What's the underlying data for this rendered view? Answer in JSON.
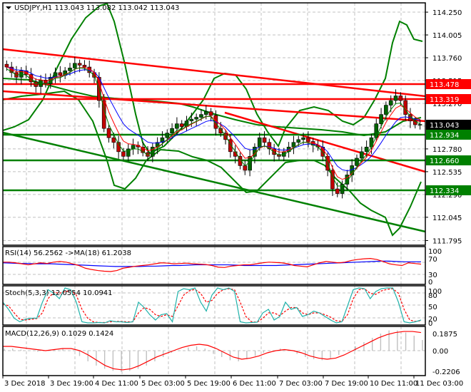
{
  "header": {
    "symbol": "USDJPY,H1",
    "ohlc": "113.043 113.082 113.042 113.043",
    "collapse_icon": "triangle-down-icon"
  },
  "price_axis": {
    "ticks": [
      "114.250",
      "114.005",
      "113.760",
      "113.515",
      "113.270",
      "113.043",
      "112.780",
      "112.535",
      "112.290",
      "112.045",
      "111.795"
    ],
    "current_price": "113.043",
    "levels": [
      {
        "value": "113.478",
        "color": "#ff0000"
      },
      {
        "value": "113.319",
        "color": "#ff0000"
      },
      {
        "value": "112.934",
        "color": "#008000"
      },
      {
        "value": "112.660",
        "color": "#008000"
      },
      {
        "value": "112.334",
        "color": "#008000"
      }
    ]
  },
  "rsi": {
    "label": "RSI(14) 56.2562  ->MA(18) 61.2038",
    "ticks": [
      "100",
      "70",
      "30",
      "0"
    ]
  },
  "stoch": {
    "label": "Stoch(5,3,3) 12.0554 10.0941",
    "ticks": [
      "100",
      "80",
      "50",
      "20",
      "0"
    ]
  },
  "macd": {
    "label": "MACD(12,26,9) 0.1029 0.1424",
    "ticks": [
      "0.1875",
      "0.00",
      "-0.2206"
    ]
  },
  "time_axis": [
    "3 Dec 2018",
    "3 Dec 19:00",
    "4 Dec 11:00",
    "5 Dec 03:00",
    "5 Dec 19:00",
    "6 Dec 11:00",
    "7 Dec 03:00",
    "7 Dec 19:00",
    "10 Dec 11:00",
    "11 Dec 03:00"
  ],
  "colors": {
    "bull": "#006400",
    "bear": "#c00000",
    "resistance": "#ff0000",
    "support": "#008000",
    "bollinger": "#008000",
    "ma_fast": "#ff0000",
    "ma_slow": "#0000ff",
    "stoch_main": "#20b2aa",
    "stoch_signal": "#ff0000",
    "macd_signal": "#ff0000",
    "macd_hist": "#c0c0c0"
  },
  "chart_data": {
    "type": "candlestick",
    "title": "USDJPY,H1",
    "ylim": [
      111.75,
      114.3
    ],
    "closes": [
      113.66,
      113.6,
      113.55,
      113.62,
      113.58,
      113.5,
      113.45,
      113.52,
      113.48,
      113.55,
      113.6,
      113.57,
      113.62,
      113.65,
      113.7,
      113.68,
      113.66,
      113.6,
      113.55,
      113.3,
      113.0,
      112.9,
      112.85,
      112.75,
      112.7,
      112.78,
      112.82,
      112.8,
      112.74,
      112.7,
      112.8,
      112.85,
      112.9,
      112.95,
      113.0,
      113.05,
      113.02,
      113.08,
      113.1,
      113.12,
      113.15,
      113.18,
      113.14,
      113.0,
      112.95,
      112.88,
      112.75,
      112.7,
      112.6,
      112.55,
      112.7,
      112.8,
      112.9,
      112.85,
      112.78,
      112.72,
      112.7,
      112.75,
      112.8,
      112.85,
      112.88,
      112.9,
      112.86,
      112.82,
      112.8,
      112.7,
      112.55,
      112.35,
      112.3,
      112.4,
      112.5,
      112.6,
      112.68,
      112.75,
      112.8,
      112.9,
      113.05,
      113.15,
      113.25,
      113.3,
      113.35,
      113.3,
      113.15,
      113.08,
      113.04,
      113.043
    ],
    "bands": "Bollinger(20) upper/lower green",
    "trendlines": "red descending resistance, green descending support"
  }
}
